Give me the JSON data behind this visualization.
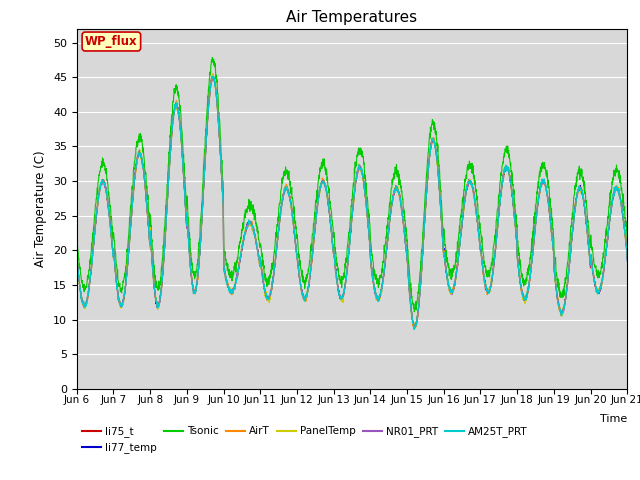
{
  "title": "Air Temperatures",
  "ylabel": "Air Temperature (C)",
  "xlabel": "Time",
  "ylim": [
    0,
    52
  ],
  "yticks": [
    0,
    5,
    10,
    15,
    20,
    25,
    30,
    35,
    40,
    45,
    50
  ],
  "bg_color": "#d8d8d8",
  "legend_box_text": "WP_flux",
  "legend_box_color": "#ffffbb",
  "legend_box_border": "#cc0000",
  "series": [
    {
      "label": "li75_t",
      "color": "#cc0000"
    },
    {
      "label": "li77_temp",
      "color": "#0000cc"
    },
    {
      "label": "Tsonic",
      "color": "#00cc00"
    },
    {
      "label": "AirT",
      "color": "#ff8800"
    },
    {
      "label": "PanelTemp",
      "color": "#cccc00"
    },
    {
      "label": "NR01_PRT",
      "color": "#9955bb"
    },
    {
      "label": "AM25T_PRT",
      "color": "#00cccc"
    }
  ],
  "xtick_labels": [
    "Jun 6",
    "Jun 7",
    "Jun 8",
    "Jun 9",
    "Jun 10",
    "Jun 11",
    "Jun 12",
    "Jun 13",
    "Jun 14",
    "Jun 15",
    "Jun 16",
    "Jun 17",
    "Jun 18",
    "Jun 19",
    "Jun 20",
    "Jun 21"
  ],
  "day_maxes": [
    30,
    34,
    41,
    45,
    24,
    29,
    30,
    32,
    29,
    36,
    30,
    32,
    30,
    29,
    29,
    25
  ],
  "day_mins": [
    12,
    12,
    12,
    14,
    14,
    13,
    13,
    13,
    13,
    9,
    14,
    14,
    13,
    11,
    14,
    15
  ]
}
